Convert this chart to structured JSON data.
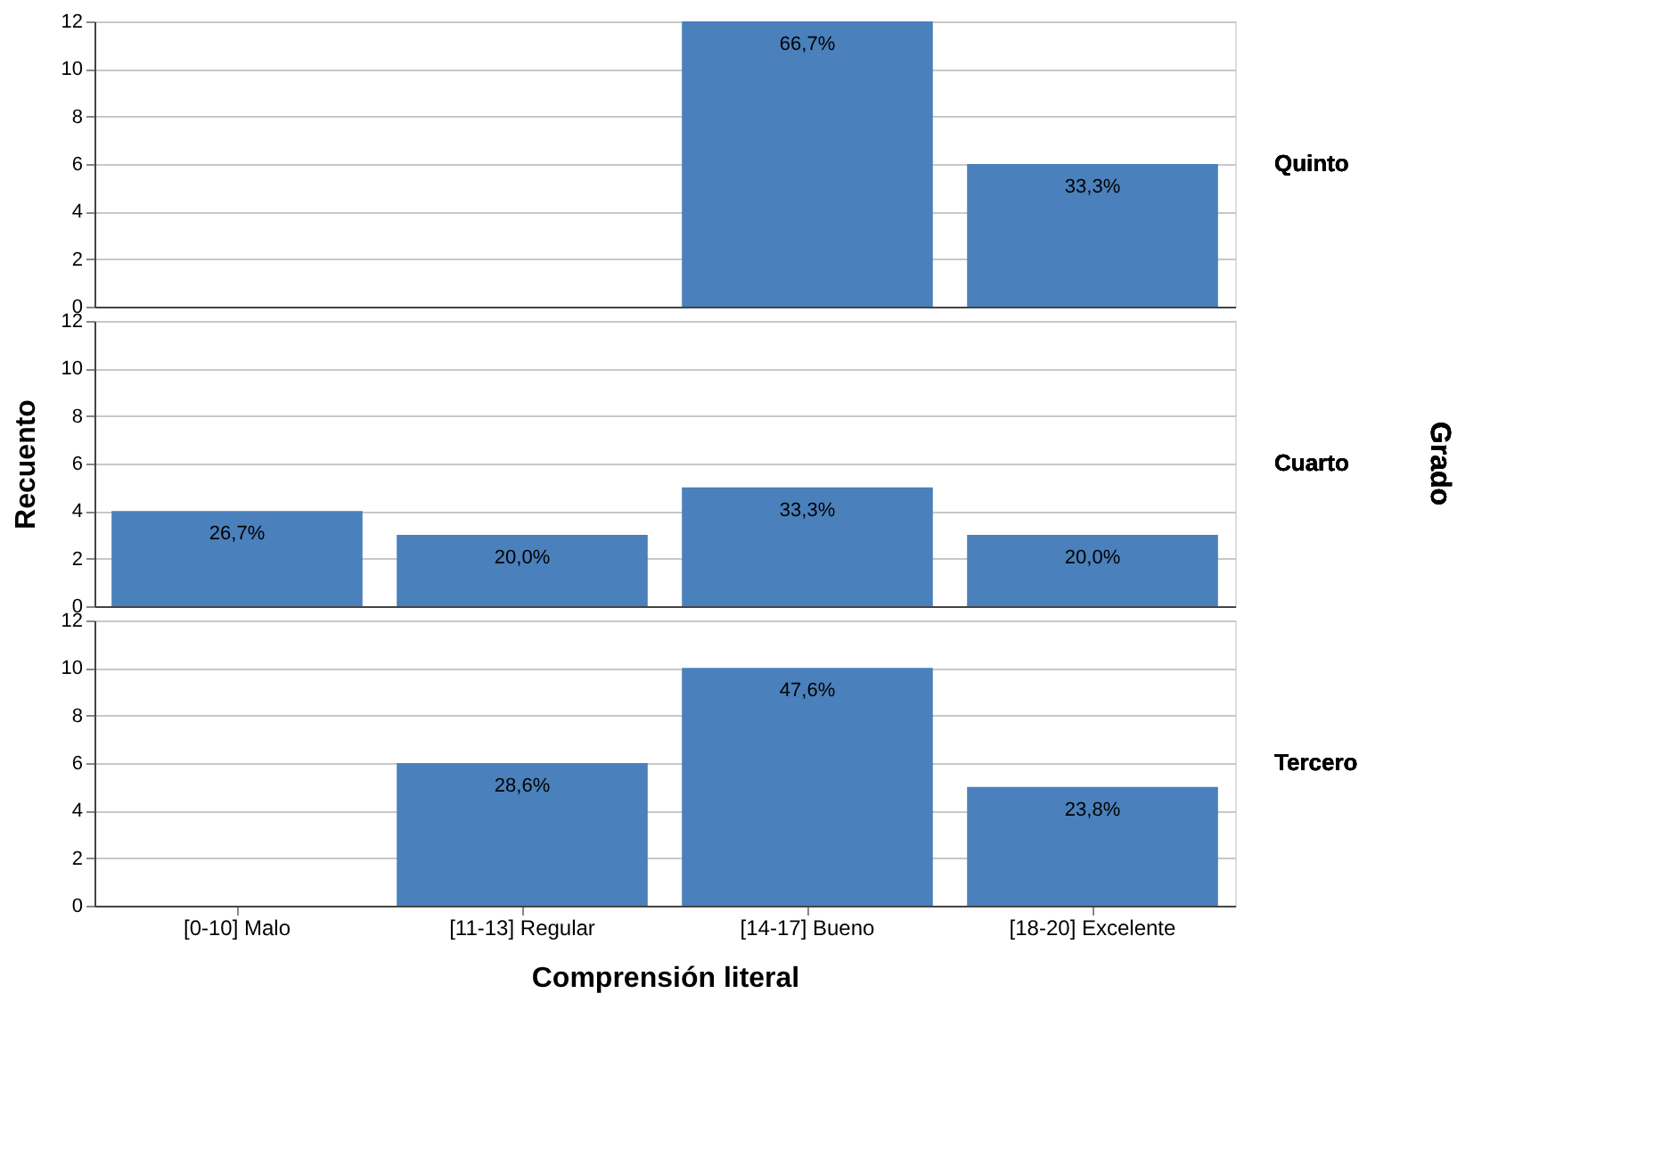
{
  "chart_data": [
    {
      "type": "bar",
      "y2label": "Quinto",
      "categories": [
        "[0-10]  Malo",
        "[11-13]  Regular",
        "[14-17]  Bueno",
        "[18-20] Excelente"
      ],
      "values": [
        0,
        0,
        12,
        6
      ],
      "color": "#4a80bb",
      "ylim": [
        0,
        12
      ],
      "yticks": [
        0,
        2,
        4,
        6,
        8,
        10,
        12
      ],
      "grid": "y",
      "tick_labels": "y",
      "annotations": [
        {
          "text": "66,7%",
          "x": "[14-17]  Bueno",
          "y": 12
        },
        {
          "text": "33,3%",
          "x": "[18-20] Excelente",
          "y": 6
        }
      ]
    },
    {
      "type": "bar",
      "y2label": "Cuarto",
      "ylabel": "Recuento",
      "categories": [
        "[0-10]  Malo",
        "[11-13]  Regular",
        "[14-17]  Bueno",
        "[18-20] Excelente"
      ],
      "values": [
        4,
        3,
        5,
        3
      ],
      "color": "#4a80bb",
      "ylim": [
        0,
        12
      ],
      "yticks": [
        0,
        2,
        4,
        6,
        8,
        10,
        12
      ],
      "grid": "y",
      "tick_labels": "y",
      "annotations": [
        "Grado",
        {
          "text": "26,7%",
          "x": "[0-10]  Malo",
          "y": 4
        },
        {
          "text": "20,0%",
          "x": "[11-13]  Regular",
          "y": 3
        },
        {
          "text": "33,3%",
          "x": "[14-17]  Bueno",
          "y": 5
        },
        {
          "text": "20,0%",
          "x": "[18-20] Excelente",
          "y": 3
        }
      ]
    },
    {
      "type": "bar",
      "y2label": "Tercero",
      "xlabel": "Comprensión literal",
      "categories": [
        "[0-10]  Malo",
        "[11-13]  Regular",
        "[14-17]  Bueno",
        "[18-20] Excelente"
      ],
      "values": [
        0,
        6,
        10,
        5
      ],
      "color": "#4a80bb",
      "ylim": [
        0,
        12
      ],
      "yticks": [
        0,
        2,
        4,
        6,
        8,
        10,
        12
      ],
      "grid": "y",
      "annotations": [
        {
          "text": "28,6%",
          "x": "[11-13]  Regular",
          "y": 6
        },
        {
          "text": "47,6%",
          "x": "[14-17]  Bueno",
          "y": 10
        },
        {
          "text": "23,8%",
          "x": "[18-20] Excelente",
          "y": 5
        }
      ]
    }
  ]
}
